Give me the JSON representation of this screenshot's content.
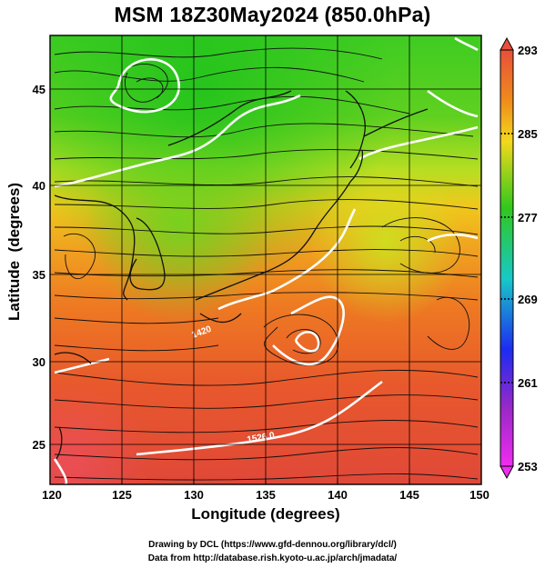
{
  "title": "MSM 18Z30May2024 (850.0hPa)",
  "axes": {
    "xlabel": "Longitude (degrees)",
    "ylabel": "Latitude  (degrees)",
    "lon_ticks": [
      "120",
      "125",
      "130",
      "135",
      "140",
      "145",
      "150"
    ],
    "lat_ticks": [
      "25",
      "30",
      "35",
      "40",
      "45"
    ]
  },
  "colorbar": {
    "labels": [
      "293",
      "285",
      "277",
      "269",
      "261",
      "253"
    ],
    "colors": {
      "top": "#e8503a",
      "orange": "#f08a1c",
      "yellow": "#f3e41c",
      "green": "#30c81c",
      "cyan": "#18c8c8",
      "blue": "#1c2cf0",
      "purple": "#9a28c8",
      "magenta": "#f02cf0"
    }
  },
  "contour_labels": [
    "1526.0",
    "1420"
  ],
  "credits": {
    "line1": "Drawing by DCL (https://www.gfd-dennou.org/library/dcl/)",
    "line2": "Data from http://database.rish.kyoto-u.ac.jp/arch/jmadata/"
  },
  "chart_data": {
    "type": "heatmap",
    "title": "MSM 18Z30May2024 (850.0hPa)",
    "xlabel": "Longitude (degrees)",
    "ylabel": "Latitude  (degrees)",
    "xlim": [
      120,
      150
    ],
    "ylim": [
      22.4,
      47.6
    ],
    "colorbar_range": [
      253,
      293
    ],
    "colorbar_ticks": [
      293,
      285,
      277,
      269,
      261,
      253
    ],
    "overlays": [
      "streamlines (wind)",
      "white contours (geopotential height)",
      "coastlines",
      "5-degree grid"
    ],
    "contour_labels": [
      "1526.0",
      "1420"
    ]
  }
}
